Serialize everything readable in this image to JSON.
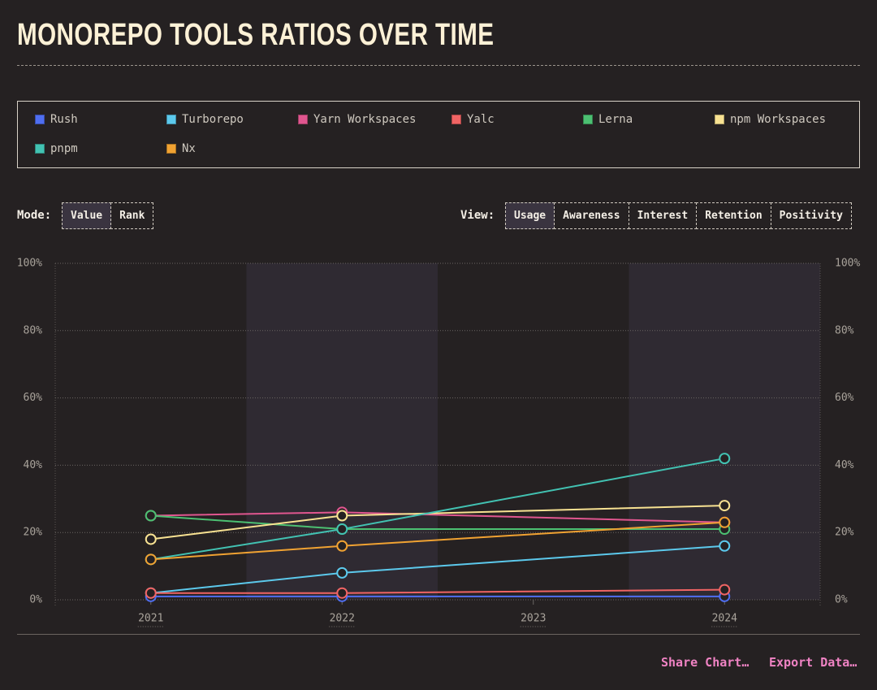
{
  "header": {
    "title": "MONOREPO TOOLS RATIOS OVER TIME"
  },
  "controls": {
    "mode_label": "Mode:",
    "mode_options": [
      "Value",
      "Rank"
    ],
    "view_label": "View:",
    "view_options": [
      "Usage",
      "Awareness",
      "Interest",
      "Retention",
      "Positivity"
    ]
  },
  "actions": [
    "Share Chart…",
    "Export Data…"
  ],
  "chart_data": {
    "type": "line",
    "x": [
      2021,
      2022,
      2024
    ],
    "xlim": [
      2020.5,
      2024.5
    ],
    "xticks": [
      2021,
      2022,
      2023,
      2024
    ],
    "ylim": [
      0,
      100
    ],
    "yticks": [
      {
        "value": 0,
        "label": "0%"
      },
      {
        "value": 20,
        "label": "20%"
      },
      {
        "value": 40,
        "label": "40%"
      },
      {
        "value": 60,
        "label": "60%"
      },
      {
        "value": 80,
        "label": "80%"
      },
      {
        "value": 100,
        "label": "100%"
      }
    ],
    "grid": true,
    "series": [
      {
        "name": "Rush",
        "color": "#4f6ef0",
        "values": [
          1,
          1,
          1
        ]
      },
      {
        "name": "Turborepo",
        "color": "#5cc9ec",
        "values": [
          2,
          8,
          16
        ]
      },
      {
        "name": "Yarn Workspaces",
        "color": "#e0568f",
        "values": [
          25,
          26,
          23
        ]
      },
      {
        "name": "Yalc",
        "color": "#f06464",
        "values": [
          2,
          2,
          3
        ]
      },
      {
        "name": "Lerna",
        "color": "#4cc072",
        "values": [
          25,
          21,
          21
        ]
      },
      {
        "name": "npm Workspaces",
        "color": "#f8e292",
        "values": [
          18,
          25,
          28
        ]
      },
      {
        "name": "pnpm",
        "color": "#42c2b2",
        "values": [
          12,
          21,
          42
        ]
      },
      {
        "name": "Nx",
        "color": "#f0a232",
        "values": [
          12,
          16,
          23
        ]
      }
    ]
  }
}
